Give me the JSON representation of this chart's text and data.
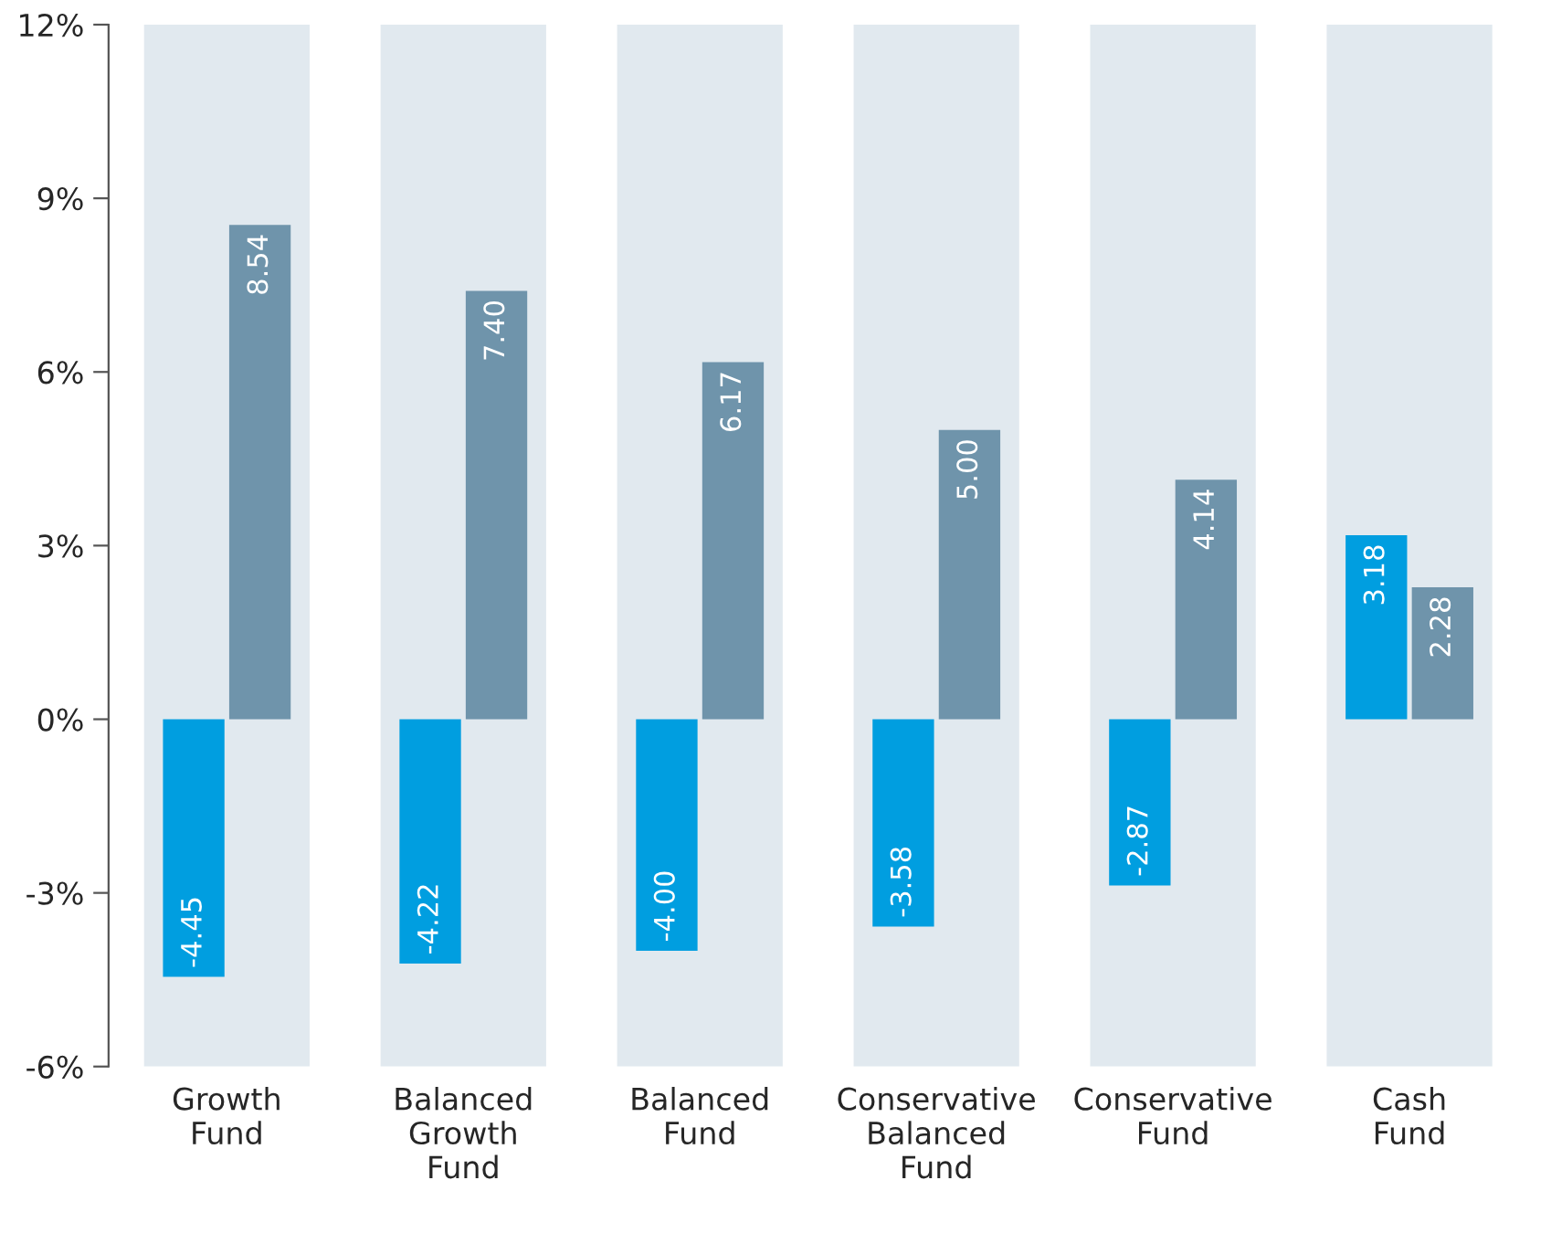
{
  "chart_data": {
    "type": "bar",
    "categories": [
      "Growth\nFund",
      "Balanced\nGrowth\nFund",
      "Balanced\nFund",
      "Conservative\nBalanced\nFund",
      "Conservative\nFund",
      "Cash\nFund"
    ],
    "series": [
      {
        "color": "#009ee0",
        "values": [
          -4.45,
          -4.22,
          -4.0,
          -3.58,
          -2.87,
          3.18
        ],
        "value_labels": [
          "-4.45",
          "-4.22",
          "-4.00",
          "-3.58",
          "-2.87",
          "3.18"
        ]
      },
      {
        "color": "#6f94ab",
        "values": [
          8.54,
          7.4,
          6.17,
          5.0,
          4.14,
          2.28
        ],
        "value_labels": [
          "8.54",
          "7.40",
          "6.17",
          "5.00",
          "4.14",
          "2.28"
        ]
      }
    ],
    "ylim": [
      -6,
      12
    ],
    "yticks": [
      {
        "value": -6,
        "label": "-6%"
      },
      {
        "value": -3,
        "label": "-3%"
      },
      {
        "value": 0,
        "label": "0%"
      },
      {
        "value": 3,
        "label": "3%"
      },
      {
        "value": 6,
        "label": "6%"
      },
      {
        "value": 9,
        "label": "9%"
      },
      {
        "value": 12,
        "label": "12%"
      }
    ]
  }
}
